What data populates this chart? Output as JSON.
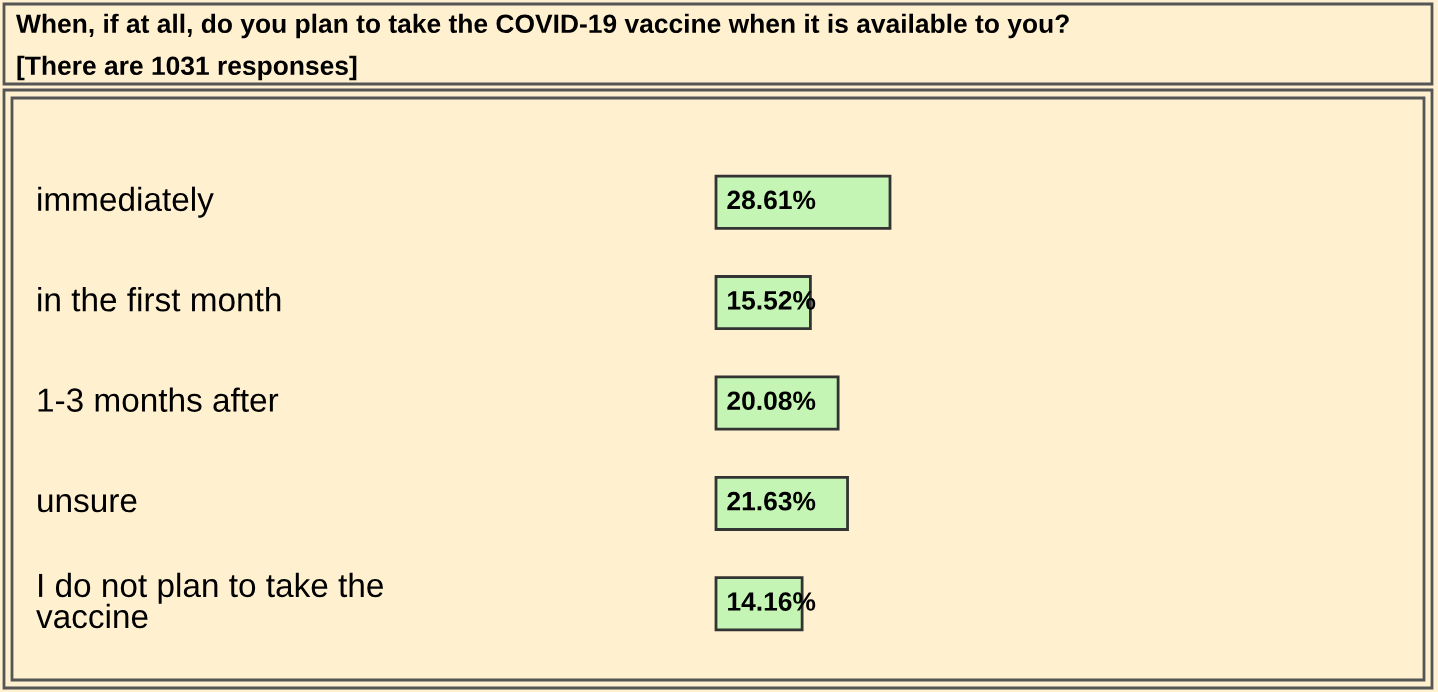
{
  "chart_data": {
    "type": "bar",
    "orientation": "horizontal",
    "title": "When, if at all, do you plan to take the COVID-19 vaccine when it is available to you?",
    "subtitle": "[There are 1031 responses]",
    "categories": [
      "immediately",
      "in the first month",
      "1-3 months after",
      "unsure",
      "I do not plan to take the\nvaccine"
    ],
    "values": [
      28.61,
      15.52,
      20.08,
      21.63,
      14.16
    ],
    "value_labels": [
      "28.61%",
      "15.52%",
      "20.08%",
      "21.63%",
      "14.16%"
    ],
    "color": "#c4f5b4"
  }
}
